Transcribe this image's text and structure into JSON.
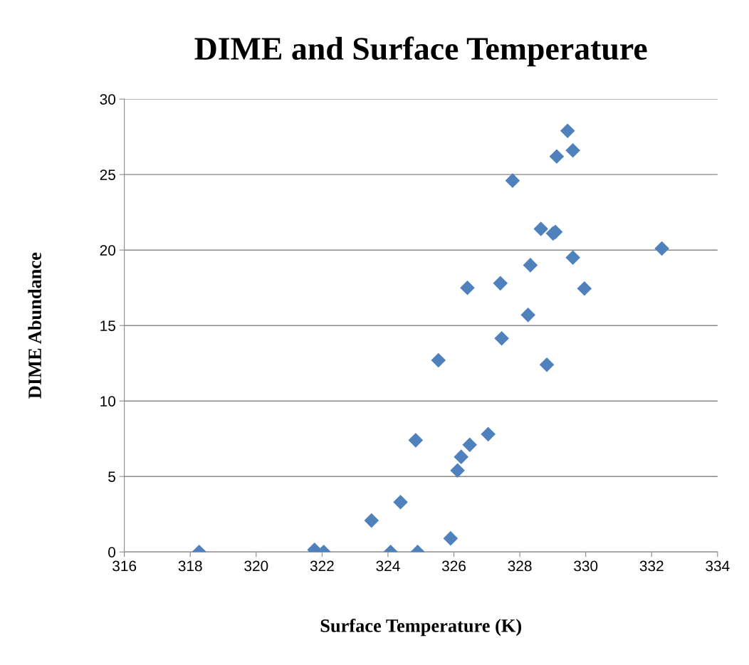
{
  "chart_data": {
    "type": "scatter",
    "title": "DIME and Surface Temperature",
    "xlabel": "Surface Temperature (K)",
    "ylabel": "DIME Abundance",
    "x": [
      318.27,
      321.77,
      322.05,
      323.5,
      324.38,
      324.08,
      324.9,
      324.84,
      325.53,
      325.9,
      326.11,
      326.22,
      326.41,
      326.48,
      327.04,
      327.41,
      327.45,
      327.78,
      328.25,
      328.32,
      328.64,
      328.82,
      329.01,
      329.08,
      329.12,
      329.45,
      329.61,
      329.61,
      329.96,
      332.31
    ],
    "values": [
      0,
      0.14,
      0,
      2.08,
      3.3,
      0,
      0,
      7.4,
      12.7,
      0.9,
      5.4,
      6.3,
      17.5,
      7.1,
      7.8,
      17.8,
      14.15,
      24.6,
      15.7,
      19.0,
      21.4,
      12.4,
      21.1,
      21.2,
      26.2,
      27.9,
      26.6,
      19.5,
      17.45,
      20.1
    ],
    "color": "#4f81bd",
    "marker": "diamond",
    "xlim": [
      316,
      334
    ],
    "xticks": [
      316,
      318,
      320,
      322,
      324,
      326,
      328,
      330,
      332,
      334
    ],
    "ylim": [
      0,
      30
    ],
    "yticks": [
      0,
      5,
      10,
      15,
      20,
      25,
      30
    ],
    "grid": "y"
  }
}
